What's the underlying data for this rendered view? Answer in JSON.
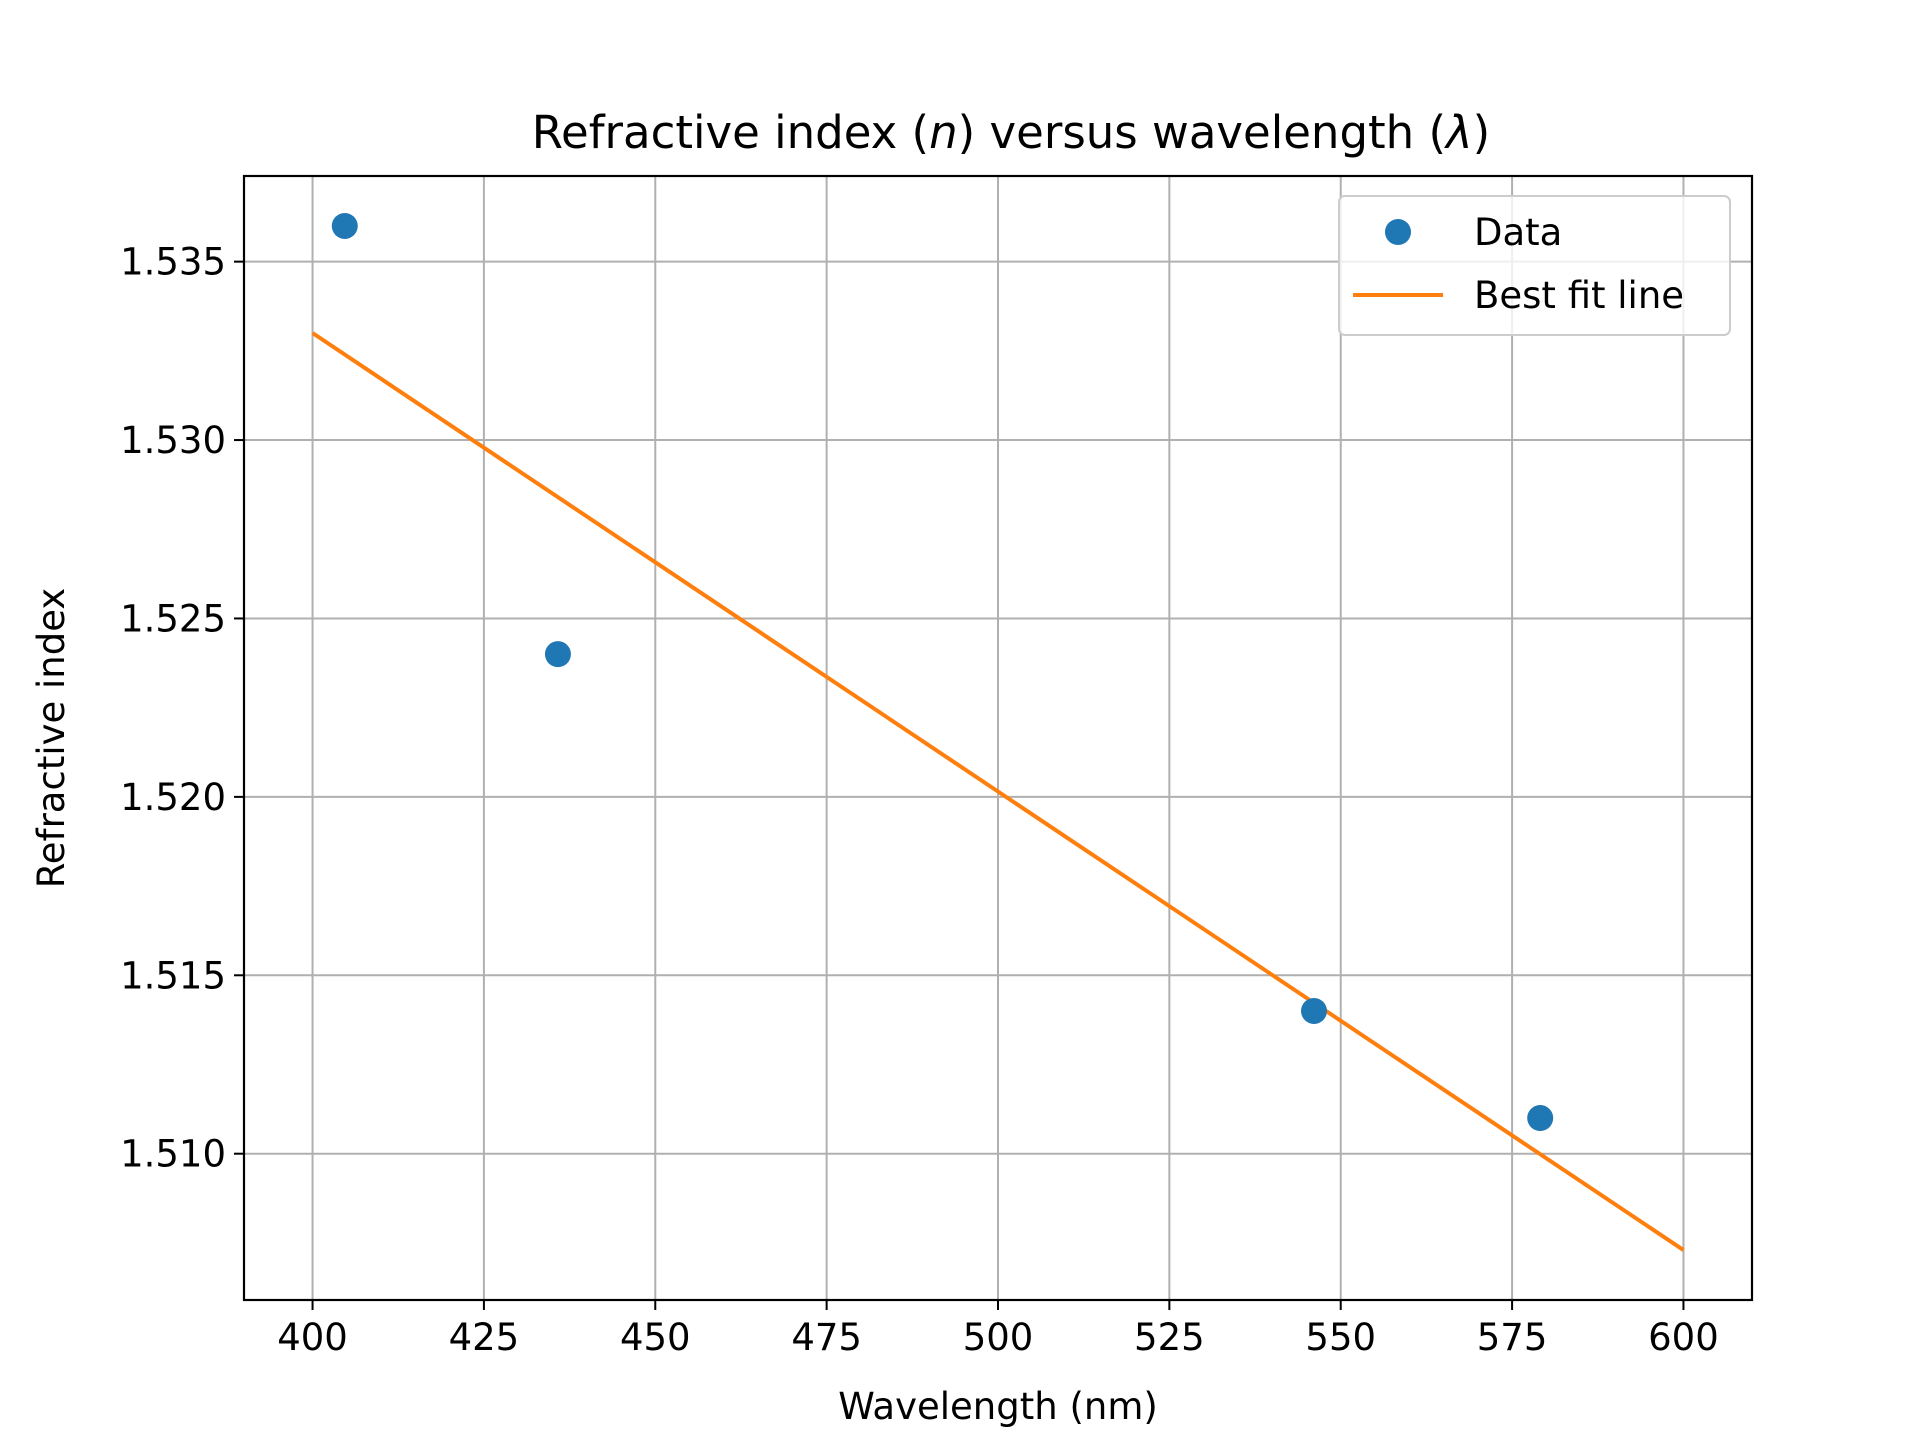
{
  "chart_data": {
    "type": "scatter",
    "title": {
      "prefix": "Refractive index (",
      "n_symbol": "n",
      "middle": ") versus wavelength (",
      "lambda_symbol": "λ",
      "suffix": ")"
    },
    "xlabel": "Wavelength (nm)",
    "ylabel": "Refractive index",
    "xlim": [
      390,
      610
    ],
    "ylim": [
      1.5059,
      1.5374
    ],
    "xticks": [
      400,
      425,
      450,
      475,
      500,
      525,
      550,
      575,
      600
    ],
    "xtick_labels": [
      "400",
      "425",
      "450",
      "475",
      "500",
      "525",
      "550",
      "575",
      "600"
    ],
    "yticks": [
      1.51,
      1.515,
      1.52,
      1.525,
      1.53,
      1.535
    ],
    "ytick_labels": [
      "1.510",
      "1.515",
      "1.520",
      "1.525",
      "1.530",
      "1.535"
    ],
    "grid": true,
    "legend_position": "upper right",
    "series": [
      {
        "name": "Data",
        "kind": "scatter",
        "color": "#1f77b4",
        "x": [
          404.7,
          435.8,
          546.1,
          579.1
        ],
        "y": [
          1.536,
          1.524,
          1.514,
          1.511
        ]
      },
      {
        "name": "Best fit line",
        "kind": "line",
        "color": "#ff7f0e",
        "x": [
          400,
          600
        ],
        "y": [
          1.533,
          1.5073
        ]
      }
    ]
  }
}
